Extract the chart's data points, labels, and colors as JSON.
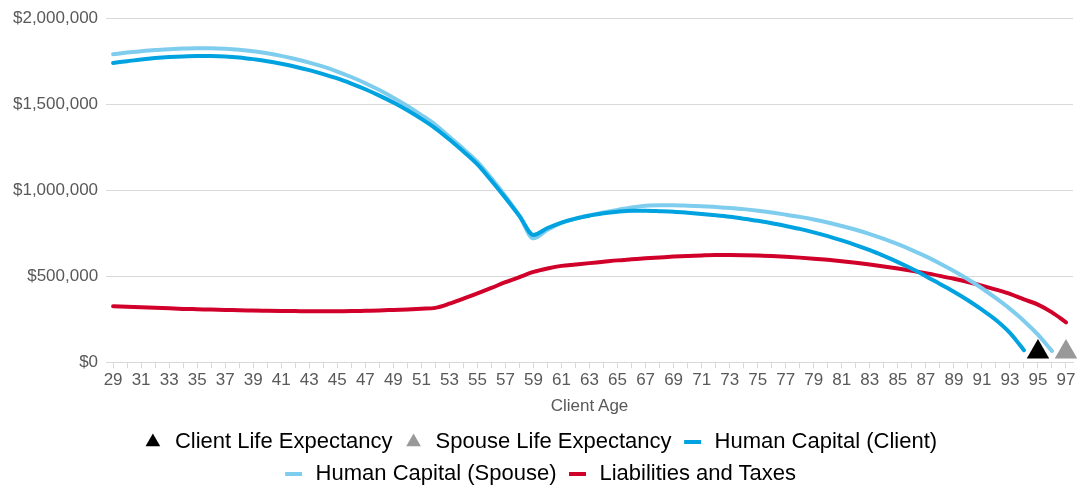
{
  "chart_data": {
    "type": "line",
    "xlabel": "Client Age",
    "categories": [
      "29",
      null,
      "31",
      null,
      "33",
      null,
      "35",
      null,
      "37",
      null,
      "39",
      null,
      "41",
      null,
      "43",
      null,
      "45",
      null,
      "47",
      null,
      "49",
      null,
      "51",
      null,
      "53",
      null,
      "55",
      null,
      "57",
      null,
      "59",
      null,
      "61",
      null,
      "63",
      null,
      "65",
      null,
      "67",
      null,
      "69",
      null,
      "71",
      null,
      "73",
      null,
      "75",
      null,
      "77",
      null,
      "79",
      null,
      "81",
      null,
      "83",
      null,
      "85",
      null,
      "87",
      null,
      "89",
      null,
      "91",
      null,
      "93",
      null,
      "95",
      null,
      "97"
    ],
    "ylim": [
      0,
      2000000
    ],
    "yticks": [
      {
        "value": 0,
        "label": "$0"
      },
      {
        "value": 500000,
        "label": "$500,000"
      },
      {
        "value": 1000000,
        "label": "$1,000,000"
      },
      {
        "value": 1500000,
        "label": "$1,500,000"
      },
      {
        "value": 2000000,
        "label": "$2,000,000"
      }
    ],
    "grid": "y",
    "legend": "bottom",
    "line_style": "solid",
    "series": [
      {
        "name": "Human Capital (Client)",
        "color": "#00a3e0",
        "marker": "none",
        "values": [
          1740000,
          1750000,
          1760000,
          1768000,
          1774000,
          1778000,
          1780000,
          1780000,
          1778000,
          1772000,
          1762000,
          1750000,
          1735000,
          1718000,
          1698000,
          1675000,
          1650000,
          1620000,
          1587000,
          1550000,
          1510000,
          1465000,
          1415000,
          1360000,
          1295000,
          1225000,
          1150000,
          1055000,
          955000,
          850000,
          740000,
          780000,
          812000,
          835000,
          852000,
          866000,
          875000,
          880000,
          880000,
          878000,
          875000,
          869000,
          862000,
          854000,
          845000,
          834000,
          822000,
          808000,
          792000,
          775000,
          755000,
          733000,
          708000,
          681000,
          651000,
          618000,
          582000,
          543000,
          500000,
          455000,
          410000,
          360000,
          305000,
          245000,
          170000,
          70000,
          null,
          null,
          null
        ]
      },
      {
        "name": "Human Capital (Spouse)",
        "color": "#7fcdee",
        "marker": "none",
        "values": [
          1790000,
          1800000,
          1808000,
          1815000,
          1820000,
          1824000,
          1826000,
          1826000,
          1823000,
          1817000,
          1808000,
          1796000,
          1781000,
          1763000,
          1742000,
          1718000,
          1690000,
          1658000,
          1622000,
          1582000,
          1538000,
          1490000,
          1437000,
          1380000,
          1310000,
          1240000,
          1165000,
          1070000,
          965000,
          850000,
          720000,
          770000,
          810000,
          835000,
          855000,
          870000,
          885000,
          900000,
          910000,
          912000,
          912000,
          910000,
          907000,
          903000,
          897000,
          890000,
          881000,
          870000,
          858000,
          845000,
          830000,
          812000,
          792000,
          770000,
          745000,
          717000,
          686000,
          652000,
          615000,
          574000,
          530000,
          482000,
          430000,
          372000,
          310000,
          240000,
          160000,
          65000,
          null
        ]
      },
      {
        "name": "Liabilities and Taxes",
        "color": "#d0002a",
        "marker": "none",
        "values": [
          325000,
          322000,
          319000,
          316000,
          313000,
          310000,
          308000,
          306000,
          304000,
          302000,
          300000,
          299000,
          298000,
          297000,
          296000,
          296000,
          296000,
          297000,
          299000,
          301000,
          304000,
          307000,
          311000,
          316000,
          340000,
          370000,
          400000,
          432000,
          465000,
          495000,
          525000,
          545000,
          560000,
          568000,
          576000,
          584000,
          592000,
          598000,
          604000,
          609000,
          614000,
          618000,
          621000,
          623000,
          623000,
          622000,
          620000,
          617000,
          613000,
          608000,
          602000,
          595000,
          587000,
          578000,
          568000,
          557000,
          545000,
          532000,
          518000,
          502000,
          485000,
          466000,
          445000,
          422000,
          397000,
          365000,
          335000,
          290000,
          232000
        ]
      },
      {
        "name": "Client Life Expectancy",
        "type": "scatter",
        "color": "#000000",
        "marker": "triangle",
        "x": [
          "95"
        ],
        "values": [
          60000
        ]
      },
      {
        "name": "Spouse Life Expectancy",
        "type": "scatter",
        "color": "#999999",
        "marker": "triangle",
        "x": [
          "97"
        ],
        "values": [
          60000
        ]
      }
    ]
  }
}
